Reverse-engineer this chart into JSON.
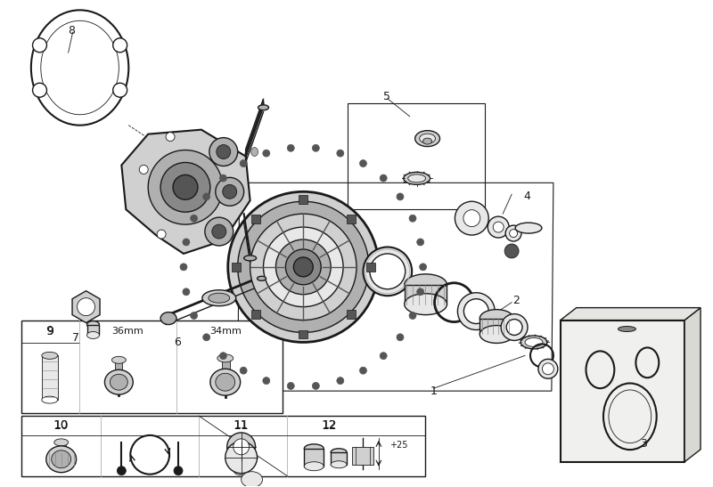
{
  "bg_color": "#ffffff",
  "line_color": "#1a1a1a",
  "gray1": "#e8e8e8",
  "gray2": "#d0d0d0",
  "gray3": "#b0b0b0",
  "gray4": "#888888",
  "gray5": "#555555",
  "fig_w": 8.0,
  "fig_h": 5.47,
  "dpi": 100,
  "lw_thin": 0.6,
  "lw_med": 1.0,
  "lw_thick": 1.5,
  "lw_bold": 2.0
}
